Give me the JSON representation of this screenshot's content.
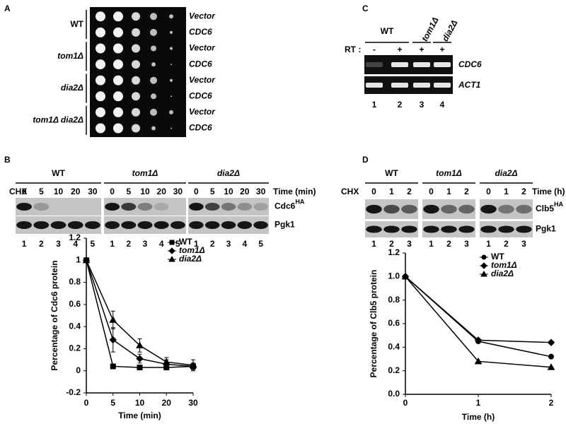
{
  "panel_a": {
    "label": "A",
    "strains": [
      {
        "name": "WT",
        "plasmids": [
          "Vector",
          "CDC6"
        ]
      },
      {
        "name": "tom1Δ",
        "plasmids": [
          "Vector",
          "CDC6"
        ]
      },
      {
        "name": "dia2Δ",
        "plasmids": [
          "Vector",
          "CDC6"
        ]
      },
      {
        "name": "tom1Δ dia2Δ",
        "plasmids": [
          "Vector",
          "CDC6"
        ]
      }
    ]
  },
  "panel_c": {
    "label": "C",
    "rt_label": "RT :",
    "groups": [
      {
        "name": "WT",
        "rt": [
          "-",
          "+"
        ],
        "lanes": [
          "1",
          "2"
        ]
      },
      {
        "name": "tom1Δ",
        "rt": [
          "+"
        ],
        "lanes": [
          "3"
        ]
      },
      {
        "name": "dia2Δ",
        "rt": [
          "+"
        ],
        "lanes": [
          "4"
        ]
      }
    ],
    "genes": [
      "CDC6",
      "ACT1"
    ]
  },
  "panel_b": {
    "label": "B",
    "chx": "CHX",
    "time_label": "Time (min)",
    "groups": [
      {
        "name": "WT",
        "times": [
          "0",
          "5",
          "10",
          "20",
          "30"
        ],
        "lanes": [
          "1",
          "2",
          "3",
          "4",
          "5"
        ]
      },
      {
        "name": "tom1Δ",
        "times": [
          "0",
          "5",
          "10",
          "20",
          "30"
        ],
        "lanes": [
          "1",
          "2",
          "3",
          "4",
          "5"
        ]
      },
      {
        "name": "dia2Δ",
        "times": [
          "0",
          "5",
          "10",
          "20",
          "30"
        ],
        "lanes": [
          "1",
          "2",
          "3",
          "4",
          "5"
        ]
      }
    ],
    "blots": [
      {
        "name": "Cdc6",
        "sup": "HA"
      },
      {
        "name": "Pgk1"
      }
    ]
  },
  "panel_d": {
    "label": "D",
    "chx": "CHX",
    "time_label": "Time (h)",
    "groups": [
      {
        "name": "WT",
        "times": [
          "0",
          "1",
          "2"
        ],
        "lanes": [
          "1",
          "2",
          "3"
        ]
      },
      {
        "name": "tom1Δ",
        "times": [
          "0",
          "1",
          "2"
        ],
        "lanes": [
          "1",
          "2",
          "3"
        ]
      },
      {
        "name": "dia2Δ",
        "times": [
          "0",
          "1",
          "2"
        ],
        "lanes": [
          "1",
          "2",
          "3"
        ]
      }
    ],
    "blots": [
      {
        "name": "Clb5",
        "sup": "HA"
      },
      {
        "name": "Pgk1"
      }
    ]
  },
  "chart_data": [
    {
      "type": "line",
      "xlabel": "Time (min)",
      "ylabel": "Percentage of Cdc6 protein",
      "categories": [
        "0",
        "5",
        "10",
        "20",
        "30"
      ],
      "ylim": [
        -0.2,
        1.2
      ],
      "yticks": [
        -0.2,
        0,
        0.2,
        0.4,
        0.6,
        0.8,
        1,
        1.2
      ],
      "legend": "upper right",
      "series": [
        {
          "name": "WT",
          "color": "#000000",
          "marker": "square",
          "values": [
            1,
            0.04,
            0.03,
            0.03,
            0.04
          ],
          "errors": [
            0,
            0.01,
            0.01,
            0.01,
            0.02
          ]
        },
        {
          "name": "tom1Δ",
          "color": "#000000",
          "marker": "diamond",
          "values": [
            1,
            0.28,
            0.11,
            0.06,
            0.04
          ],
          "errors": [
            0,
            0.11,
            0.04,
            0.04,
            0.03
          ]
        },
        {
          "name": "dia2Δ",
          "color": "#000000",
          "marker": "triangle",
          "values": [
            1,
            0.46,
            0.23,
            0.08,
            0.05
          ],
          "errors": [
            0,
            0.08,
            0.06,
            0.04,
            0.05
          ]
        }
      ]
    },
    {
      "type": "line",
      "xlabel": "Time (h)",
      "ylabel": "Percentage of Clb5 protein",
      "x": [
        0,
        1,
        2
      ],
      "xlim": [
        0,
        2
      ],
      "xticks": [
        0,
        1,
        2
      ],
      "ylim": [
        0,
        1.2
      ],
      "yticks": [
        {
          "value": 0,
          "label": "0.0"
        },
        {
          "value": 0.2,
          "label": "0.2"
        },
        {
          "value": 0.4,
          "label": "0.4"
        },
        {
          "value": 0.6,
          "label": "0.6"
        },
        {
          "value": 0.8,
          "label": "0.8"
        },
        {
          "value": 1,
          "label": "1.0"
        },
        {
          "value": 1.2,
          "label": "1.2"
        }
      ],
      "legend": "upper right",
      "series": [
        {
          "name": "WT",
          "color": "#000000",
          "marker": "circle",
          "values": [
            1,
            0.45,
            0.32
          ]
        },
        {
          "name": "tom1Δ",
          "color": "#000000",
          "marker": "diamond",
          "values": [
            1,
            0.46,
            0.44
          ]
        },
        {
          "name": "dia2Δ",
          "color": "#000000",
          "marker": "triangle",
          "values": [
            1,
            0.28,
            0.23
          ]
        }
      ]
    }
  ]
}
